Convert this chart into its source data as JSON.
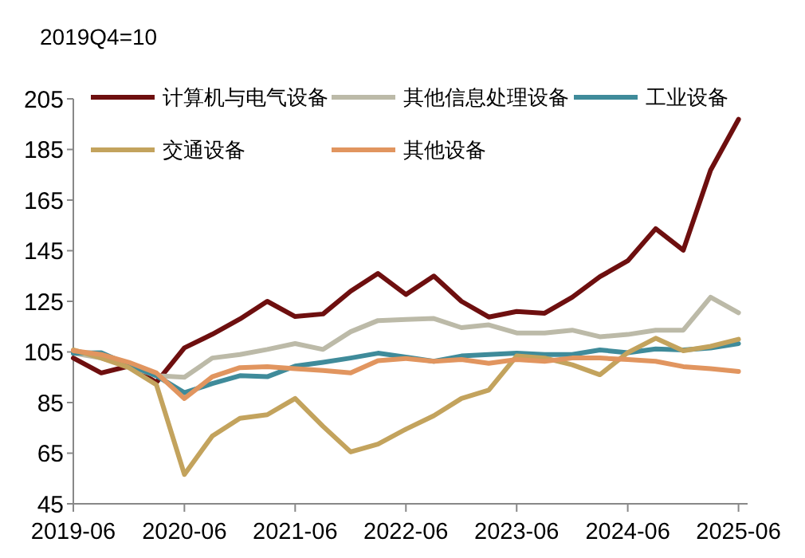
{
  "chart_data": {
    "type": "line",
    "annotations": [
      "2019Q4=10"
    ],
    "x": [
      "2019-06",
      "2019-09",
      "2019-12",
      "2020-03",
      "2020-06",
      "2020-09",
      "2020-12",
      "2021-03",
      "2021-06",
      "2021-09",
      "2021-12",
      "2022-03",
      "2022-06",
      "2022-09",
      "2022-12",
      "2023-03",
      "2023-06",
      "2023-09",
      "2023-12",
      "2024-03",
      "2024-06",
      "2024-09",
      "2024-12",
      "2025-03",
      "2025-06"
    ],
    "xlim": [
      "2019-06",
      "2025-07"
    ],
    "xticks": [
      {
        "value": "2019-06",
        "label": "2019-06"
      },
      {
        "value": "2020-06",
        "label": "2020-06"
      },
      {
        "value": "2021-06",
        "label": "2021-06"
      },
      {
        "value": "2022-06",
        "label": "2022-06"
      },
      {
        "value": "2023-06",
        "label": "2023-06"
      },
      {
        "value": "2024-06",
        "label": "2024-06"
      },
      {
        "value": "2025-06",
        "label": "2025-06"
      }
    ],
    "ylim": [
      45,
      205
    ],
    "yticks": [
      45,
      65,
      85,
      105,
      125,
      145,
      165,
      185,
      205
    ],
    "grid": false,
    "legend": "top left",
    "marker": "none",
    "line_style": "solid",
    "series": [
      {
        "name": "计算机与电气设备",
        "color": "#6e0f0f",
        "values": [
          102.6,
          96.7,
          99.4,
          93,
          106.6,
          112,
          118,
          125,
          119,
          120,
          129,
          136,
          127.7,
          135,
          125,
          118.8,
          121,
          120.3,
          126.6,
          134.7,
          141,
          153.7,
          145.2,
          176.8,
          196.9
        ]
      },
      {
        "name": "其他信息处理设备",
        "color": "#bcbaa8",
        "values": [
          104.5,
          102.6,
          99.4,
          95.6,
          95,
          102.6,
          104,
          106,
          108.3,
          106,
          113,
          117.4,
          117.8,
          118.2,
          114.6,
          115.7,
          112.5,
          112.5,
          113.6,
          111,
          111.9,
          113.6,
          113.6,
          126.6,
          120.5
        ]
      },
      {
        "name": "工业设备",
        "color": "#3f8b9a",
        "values": [
          104.5,
          104.7,
          99.9,
          95.6,
          88.9,
          92.5,
          95.6,
          95.2,
          99.4,
          100.9,
          102.6,
          104.5,
          103,
          101.3,
          103.4,
          104,
          104.5,
          104,
          104,
          105.8,
          104.7,
          106.2,
          105.8,
          106.6,
          108.3
        ]
      },
      {
        "name": "交通设备",
        "color": "#c3a35d",
        "values": [
          105.8,
          102.6,
          98.8,
          92,
          56.6,
          71.8,
          78.8,
          80.2,
          86.6,
          75.6,
          65.5,
          68.6,
          74.5,
          79.8,
          86.6,
          89.9,
          103.4,
          102.6,
          99.9,
          96,
          104.7,
          110.4,
          105.5,
          107.2,
          110
        ]
      },
      {
        "name": "其他设备",
        "color": "#e1955f",
        "values": [
          105.5,
          104,
          100.9,
          96.7,
          86.6,
          95.2,
          98.8,
          99.2,
          98.4,
          97.7,
          96.7,
          101.5,
          102.4,
          101.3,
          102,
          100.5,
          102,
          101.3,
          102.6,
          102.6,
          102,
          101.3,
          99.2,
          98.4,
          97.3
        ]
      }
    ]
  }
}
